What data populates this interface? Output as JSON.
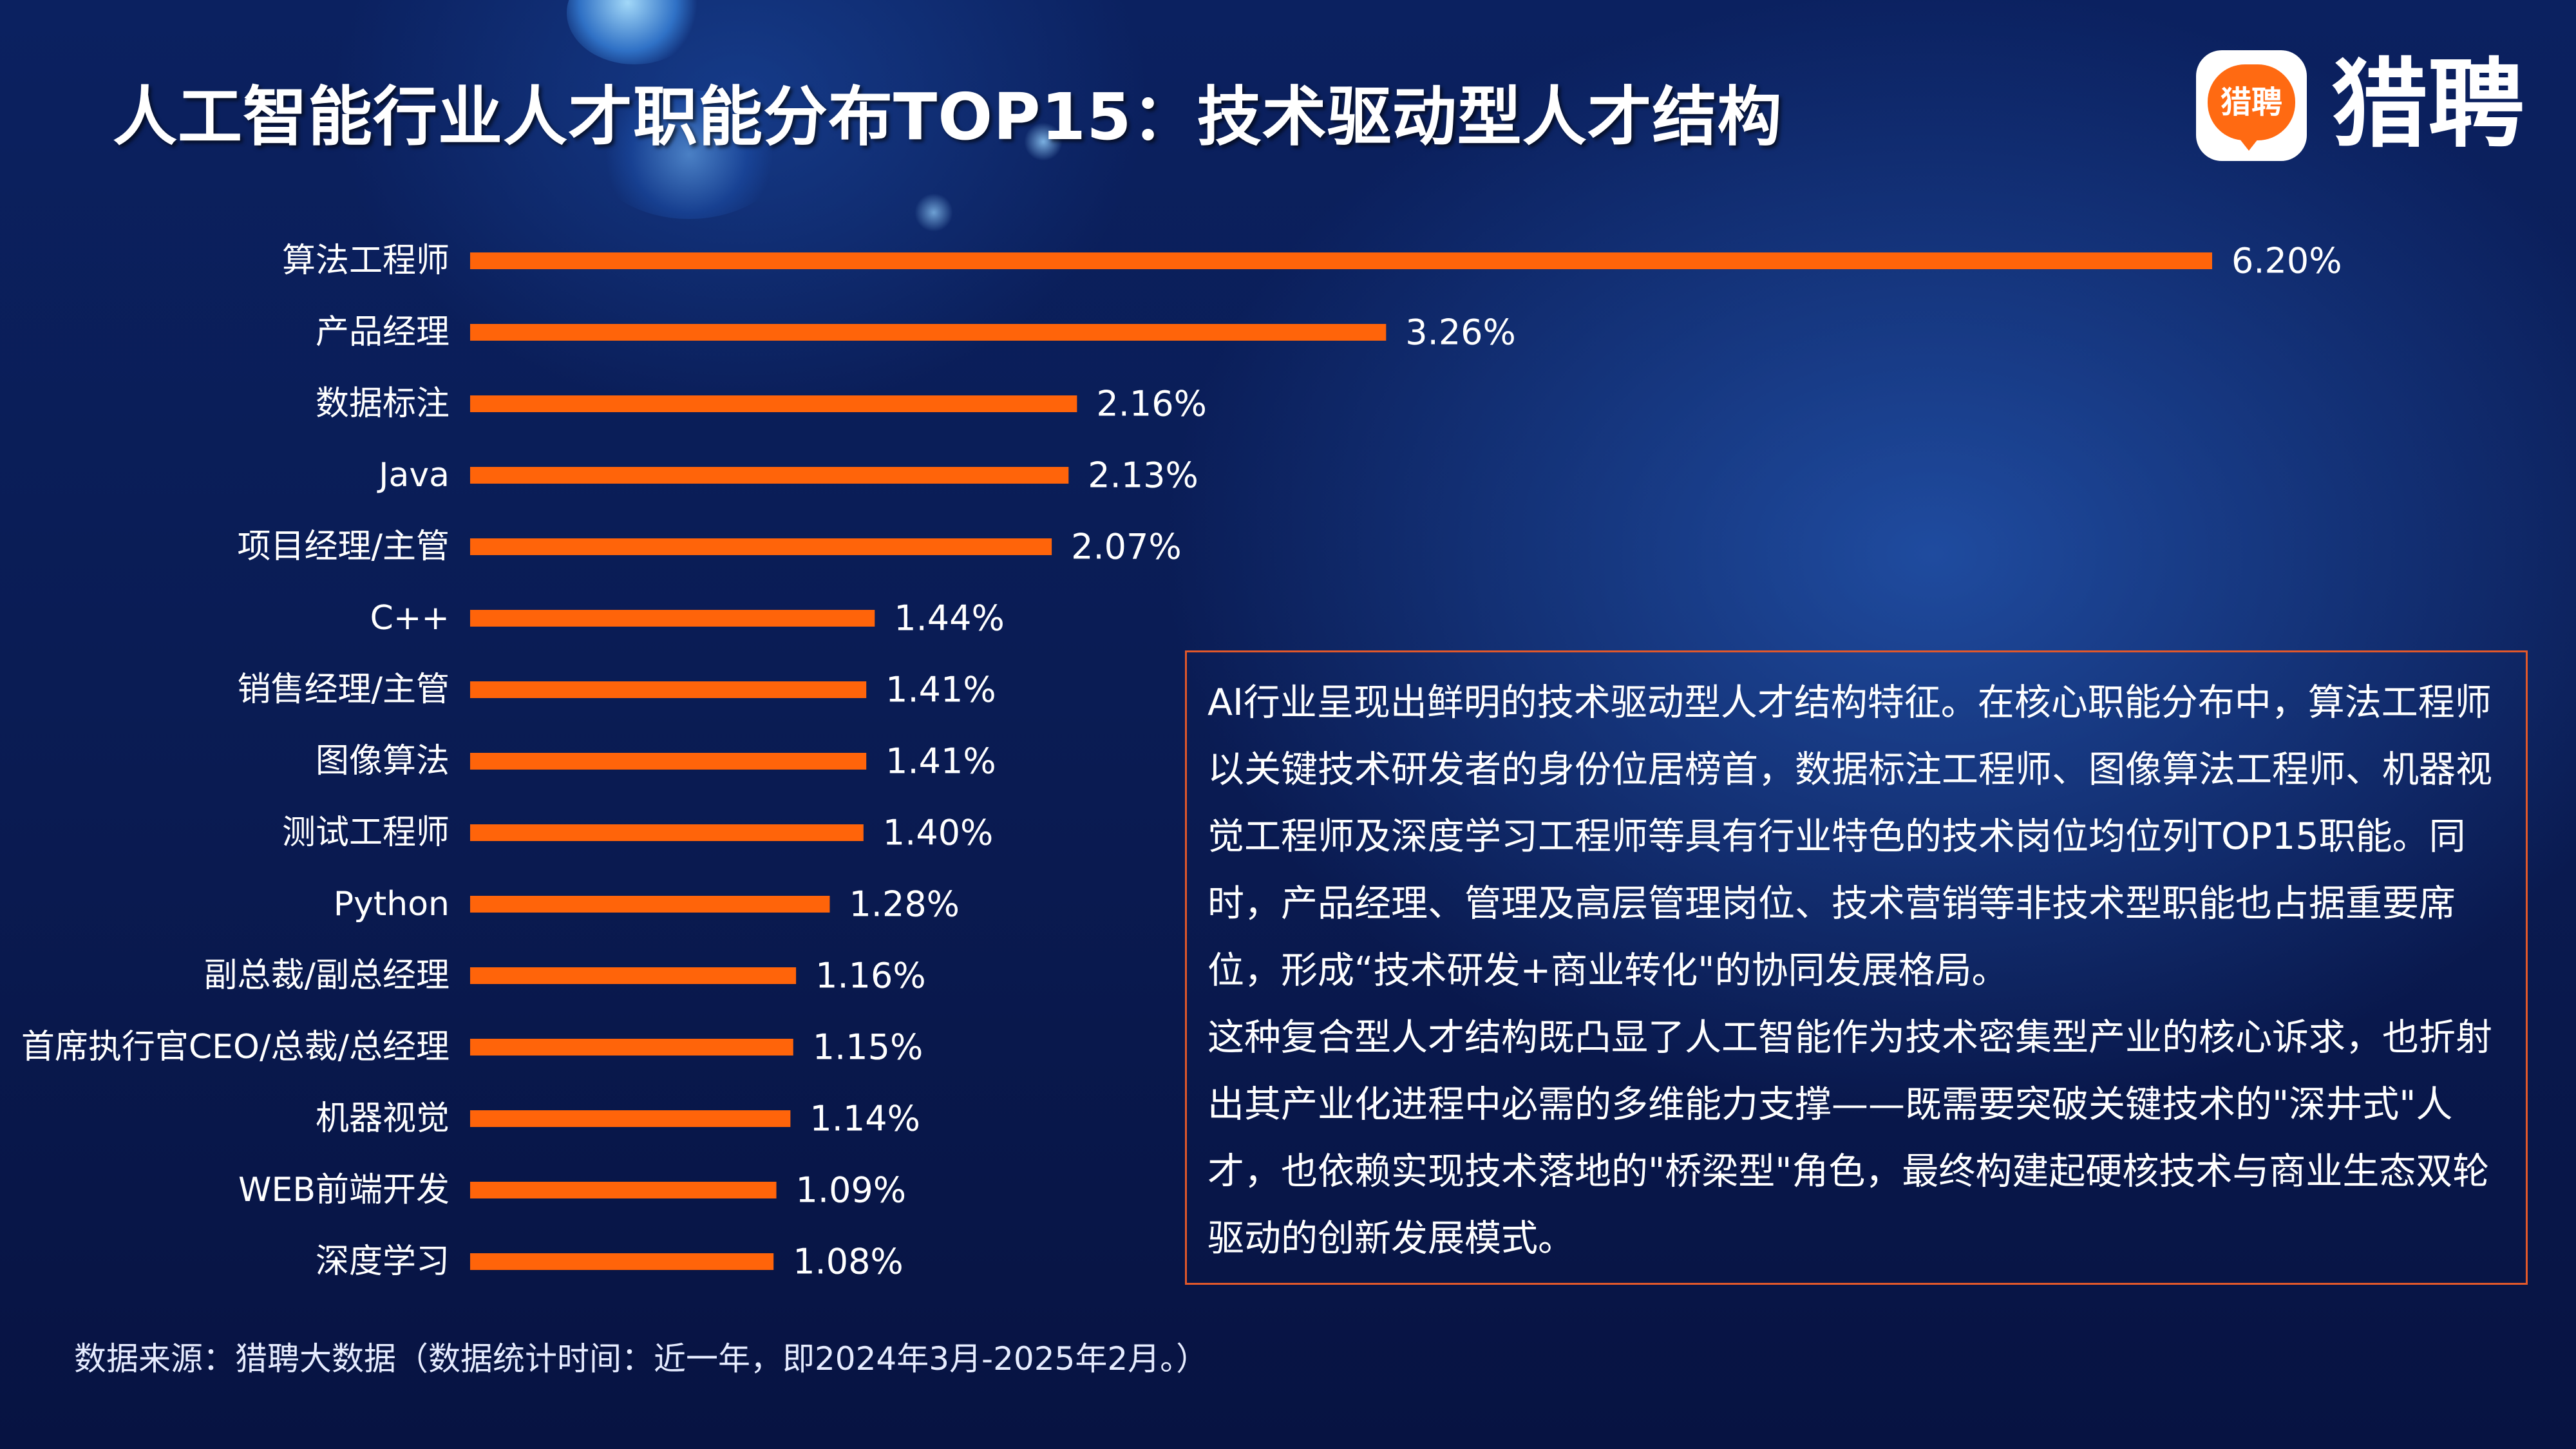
{
  "title": "人工智能行业人才职能分布TOP15：技术驱动型人才结构",
  "logo": {
    "icon_text": "猎聘",
    "brand_text": "猎聘"
  },
  "colors": {
    "bar": "#ff640a",
    "text_box_border": "#e2582a",
    "background": "#0a1c52"
  },
  "chart_data": {
    "type": "bar",
    "orientation": "horizontal",
    "categories": [
      "算法工程师",
      "产品经理",
      "数据标注",
      "Java",
      "项目经理/主管",
      "C++",
      "销售经理/主管",
      "图像算法",
      "测试工程师",
      "Python",
      "副总裁/副总经理",
      "首席执行官CEO/总裁/总经理",
      "机器视觉",
      "WEB前端开发",
      "深度学习"
    ],
    "values": [
      6.2,
      3.26,
      2.16,
      2.13,
      2.07,
      1.44,
      1.41,
      1.41,
      1.4,
      1.28,
      1.16,
      1.15,
      1.14,
      1.09,
      1.08
    ],
    "value_labels": [
      "6.20%",
      "3.26%",
      "2.16%",
      "2.13%",
      "2.07%",
      "1.44%",
      "1.41%",
      "1.41%",
      "1.40%",
      "1.28%",
      "1.16%",
      "1.15%",
      "1.14%",
      "1.09%",
      "1.08%"
    ],
    "unit": "%",
    "grid": false,
    "axes_visible": false
  },
  "description": {
    "paragraphs": [
      "AI行业呈现出鲜明的技术驱动型人才结构特征。在核心职能分布中，算法工程师以关键技术研发者的身份位居榜首，数据标注工程师、图像算法工程师、机器视觉工程师及深度学习工程师等具有行业特色的技术岗位均位列TOP15职能。同时，产品经理、管理及高层管理岗位、技术营销等非技术型职能也占据重要席位，形成“技术研发+商业转化\"的协同发展格局。",
      "这种复合型人才结构既凸显了人工智能作为技术密集型产业的核心诉求，也折射出其产业化进程中必需的多维能力支撑——既需要突破关键技术的\"深井式\"人才，也依赖实现技术落地的\"桥梁型\"角色，最终构建起硬核技术与商业生态双轮驱动的创新发展模式。"
    ]
  },
  "source": "数据来源：猎聘大数据（数据统计时间：近一年，即2024年3月-2025年2月。）"
}
